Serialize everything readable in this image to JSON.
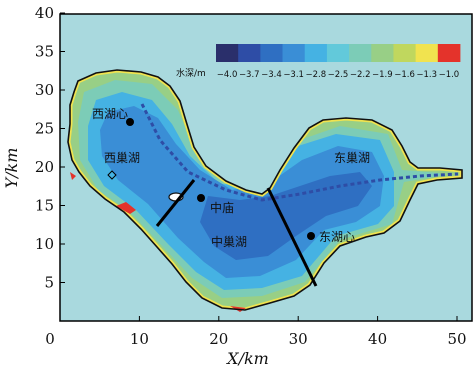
{
  "axes": {
    "x_label": "X/km",
    "y_label": "Y/km",
    "x_ticks": [
      "0",
      "10",
      "20",
      "30",
      "40",
      "50"
    ],
    "y_ticks": [
      "5",
      "10",
      "15",
      "20",
      "25",
      "30",
      "35",
      "40"
    ]
  },
  "legend": {
    "title": "水深/m",
    "ticks": [
      "−4.0",
      "−3.7",
      "−3.4",
      "−3.1",
      "−2.8",
      "−2.5",
      "−2.2",
      "−1.9",
      "−1.6",
      "−1.3",
      "−1.0"
    ],
    "colors": [
      "#2a2f6b",
      "#2e4da6",
      "#2f6fc2",
      "#3a8ed6",
      "#45b2e3",
      "#62c9da",
      "#7cccb7",
      "#98cf86",
      "#c0d75e",
      "#f1e34f",
      "#e4332b"
    ]
  },
  "colors": {
    "background_water": "#a9d9de",
    "land_outline": "#111111",
    "boundary_line": "#000000"
  },
  "places": {
    "west_center": "西湖心",
    "west_nest": "西巢湖",
    "middle_station": "中庙",
    "middle_nest": "中巢湖",
    "east_nest": "东巢湖",
    "east_center": "东湖心"
  }
}
